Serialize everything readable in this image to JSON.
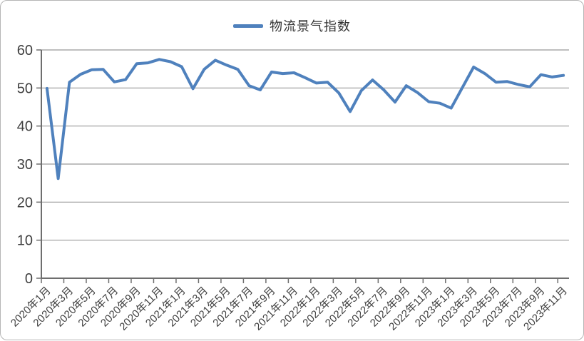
{
  "frame": {
    "background": "#ffffff",
    "border_color": "#b5b5b5"
  },
  "legend": {
    "label": "物流景气指数",
    "line_color": "#4F81BD",
    "position": "top-center"
  },
  "chart_data": {
    "type": "line",
    "title": "",
    "xlabel": "",
    "ylabel": "",
    "ylim": [
      0,
      60
    ],
    "y_ticks": [
      0,
      10,
      20,
      30,
      40,
      50,
      60
    ],
    "grid": "horizontal",
    "gridline_color": "#999999",
    "axis_color": "#6e6e6e",
    "tick_label_color": "#3f3f3f",
    "line_color": "#4F81BD",
    "x": [
      "2020年1月",
      "2020年2月",
      "2020年3月",
      "2020年4月",
      "2020年5月",
      "2020年6月",
      "2020年7月",
      "2020年8月",
      "2020年9月",
      "2020年10月",
      "2020年11月",
      "2020年12月",
      "2021年1月",
      "2021年2月",
      "2021年3月",
      "2021年4月",
      "2021年5月",
      "2021年6月",
      "2021年7月",
      "2021年8月",
      "2021年9月",
      "2021年10月",
      "2021年11月",
      "2021年12月",
      "2022年1月",
      "2022年2月",
      "2022年3月",
      "2022年4月",
      "2022年5月",
      "2022年6月",
      "2022年7月",
      "2022年8月",
      "2022年9月",
      "2022年10月",
      "2022年11月",
      "2022年12月",
      "2023年1月",
      "2023年2月",
      "2023年3月",
      "2023年4月",
      "2023年5月",
      "2023年6月",
      "2023年7月",
      "2023年8月",
      "2023年9月",
      "2023年10月",
      "2023年11月"
    ],
    "x_tick_labels": [
      "2020年1月",
      "2020年3月",
      "2020年5月",
      "2020年7月",
      "2020年9月",
      "2020年11月",
      "2021年1月",
      "2021年3月",
      "2021年5月",
      "2021年7月",
      "2021年9月",
      "2021年11月",
      "2022年1月",
      "2022年3月",
      "2022年5月",
      "2022年7月",
      "2022年9月",
      "2022年11月",
      "2023年1月",
      "2023年3月",
      "2023年5月",
      "2023年7月",
      "2023年9月",
      "2023年11月"
    ],
    "series": [
      {
        "name": "物流景气指数",
        "color": "#4F81BD",
        "values": [
          49.9,
          26.2,
          51.5,
          53.6,
          54.8,
          54.9,
          51.6,
          52.2,
          56.4,
          56.6,
          57.5,
          56.9,
          55.6,
          49.8,
          54.9,
          57.3,
          56.0,
          54.9,
          50.6,
          49.5,
          54.2,
          53.8,
          54.0,
          52.7,
          51.3,
          51.5,
          48.7,
          43.8,
          49.3,
          52.1,
          49.5,
          46.3,
          50.6,
          48.8,
          46.4,
          46.0,
          44.7,
          50.1,
          55.5,
          53.8,
          51.5,
          51.7,
          50.9,
          50.3,
          53.5,
          52.9,
          53.3
        ]
      }
    ],
    "legend_position": "top-center"
  }
}
